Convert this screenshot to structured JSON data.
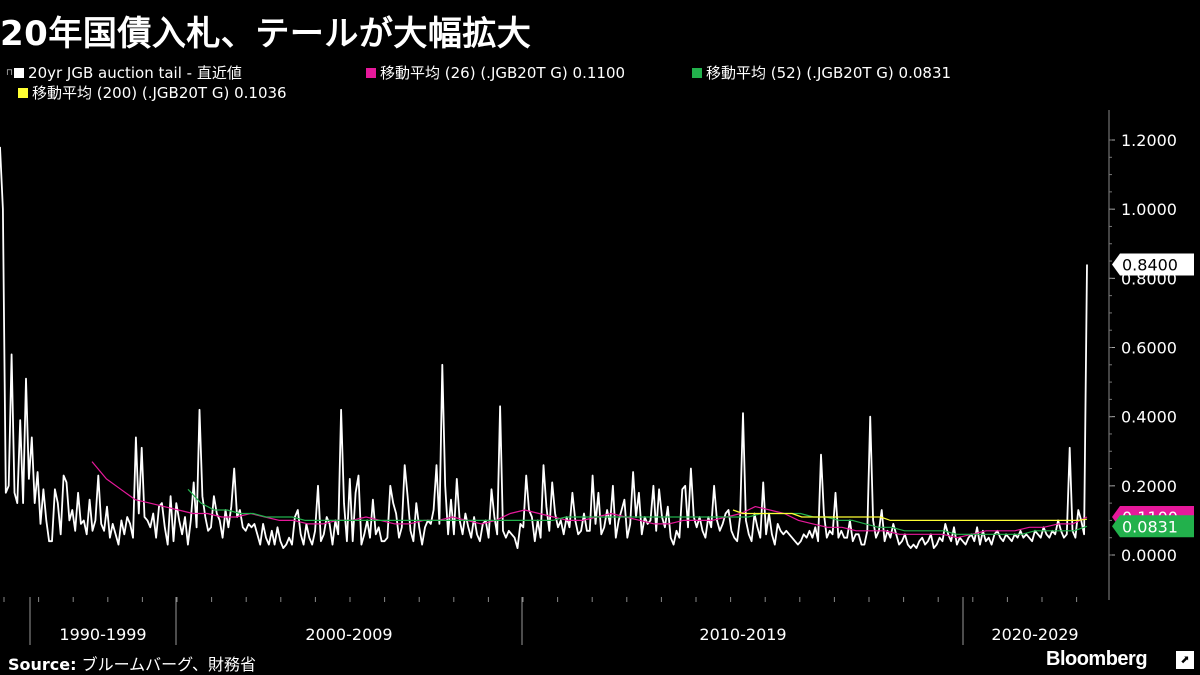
{
  "title": "20年国債入札、テールが大幅拡大",
  "source_label": "Source:",
  "source_text": "ブルームバーグ、財務省",
  "brand": "Bloomberg",
  "legend": [
    {
      "label": "20yr JGB auction tail - 直近値",
      "color": "#ffffff"
    },
    {
      "label": "移動平均 (26) (.JGB20T G) 0.1100",
      "color": "#e6199b"
    },
    {
      "label": "移動平均 (52) (.JGB20T G) 0.0831",
      "color": "#22b14c"
    },
    {
      "label": "移動平均 (200) (.JGB20T G)   0.1036",
      "color": "#ffff33"
    }
  ],
  "chart_data": {
    "type": "line",
    "y_ticks": [
      "1.2000",
      "1.0000",
      "0.8000",
      "0.6000",
      "0.4000",
      "0.2000",
      "0.0000"
    ],
    "y_tick_values": [
      1.2,
      1.0,
      0.8,
      0.6,
      0.4,
      0.2,
      0.0
    ],
    "ylim": [
      -0.1,
      1.3
    ],
    "x_labels": [
      "1990-1999",
      "2000-2009",
      "2010-2019",
      "2020-2029"
    ],
    "last_value_labels": [
      {
        "text": "0.8400",
        "value": 0.84,
        "color": "#ffffff"
      },
      {
        "text": "0.1100",
        "value": 0.11,
        "color": "#e6199b"
      },
      {
        "text": "0.0831",
        "value": 0.0831,
        "color": "#22b14c"
      }
    ],
    "series": [
      {
        "name": "20yr JGB auction tail - 直近値",
        "color": "#ffffff",
        "values": [
          1.18,
          1.0,
          0.18,
          0.2,
          0.58,
          0.18,
          0.15,
          0.39,
          0.15,
          0.51,
          0.22,
          0.34,
          0.15,
          0.24,
          0.09,
          0.19,
          0.1,
          0.04,
          0.04,
          0.19,
          0.15,
          0.06,
          0.23,
          0.21,
          0.1,
          0.13,
          0.07,
          0.18,
          0.09,
          0.1,
          0.06,
          0.16,
          0.07,
          0.1,
          0.23,
          0.09,
          0.07,
          0.14,
          0.05,
          0.09,
          0.06,
          0.03,
          0.1,
          0.06,
          0.11,
          0.09,
          0.05,
          0.34,
          0.12,
          0.31,
          0.11,
          0.1,
          0.08,
          0.12,
          0.05,
          0.14,
          0.15,
          0.08,
          0.03,
          0.17,
          0.04,
          0.15,
          0.1,
          0.06,
          0.11,
          0.03,
          0.1,
          0.21,
          0.08,
          0.42,
          0.17,
          0.11,
          0.07,
          0.08,
          0.17,
          0.12,
          0.1,
          0.05,
          0.13,
          0.08,
          0.14,
          0.25,
          0.11,
          0.13,
          0.08,
          0.07,
          0.09,
          0.08,
          0.09,
          0.06,
          0.03,
          0.09,
          0.05,
          0.03,
          0.07,
          0.03,
          0.08,
          0.04,
          0.02,
          0.03,
          0.05,
          0.03,
          0.11,
          0.13,
          0.06,
          0.03,
          0.09,
          0.05,
          0.03,
          0.07,
          0.2,
          0.04,
          0.06,
          0.11,
          0.09,
          0.03,
          0.1,
          0.06,
          0.42,
          0.15,
          0.04,
          0.22,
          0.04,
          0.18,
          0.23,
          0.03,
          0.06,
          0.1,
          0.05,
          0.16,
          0.06,
          0.08,
          0.04,
          0.04,
          0.05,
          0.2,
          0.15,
          0.12,
          0.05,
          0.08,
          0.26,
          0.17,
          0.07,
          0.04,
          0.15,
          0.08,
          0.03,
          0.08,
          0.1,
          0.09,
          0.13,
          0.26,
          0.09,
          0.55,
          0.2,
          0.06,
          0.16,
          0.06,
          0.22,
          0.1,
          0.06,
          0.12,
          0.08,
          0.05,
          0.11,
          0.06,
          0.04,
          0.09,
          0.1,
          0.05,
          0.19,
          0.11,
          0.06,
          0.43,
          0.07,
          0.05,
          0.07,
          0.06,
          0.05,
          0.02,
          0.09,
          0.08,
          0.23,
          0.13,
          0.11,
          0.04,
          0.1,
          0.05,
          0.26,
          0.14,
          0.07,
          0.21,
          0.12,
          0.08,
          0.1,
          0.06,
          0.11,
          0.08,
          0.18,
          0.1,
          0.06,
          0.07,
          0.12,
          0.07,
          0.07,
          0.23,
          0.09,
          0.18,
          0.06,
          0.08,
          0.13,
          0.09,
          0.2,
          0.05,
          0.1,
          0.13,
          0.16,
          0.05,
          0.09,
          0.24,
          0.11,
          0.18,
          0.06,
          0.11,
          0.09,
          0.1,
          0.2,
          0.07,
          0.19,
          0.11,
          0.08,
          0.14,
          0.05,
          0.03,
          0.07,
          0.05,
          0.19,
          0.2,
          0.08,
          0.25,
          0.11,
          0.08,
          0.11,
          0.07,
          0.05,
          0.11,
          0.08,
          0.2,
          0.1,
          0.07,
          0.09,
          0.12,
          0.13,
          0.07,
          0.05,
          0.04,
          0.11,
          0.41,
          0.1,
          0.06,
          0.04,
          0.12,
          0.08,
          0.05,
          0.21,
          0.06,
          0.12,
          0.06,
          0.03,
          0.09,
          0.07,
          0.06,
          0.07,
          0.06,
          0.05,
          0.04,
          0.03,
          0.04,
          0.06,
          0.05,
          0.07,
          0.05,
          0.08,
          0.04,
          0.29,
          0.12,
          0.05,
          0.07,
          0.06,
          0.18,
          0.05,
          0.07,
          0.05,
          0.05,
          0.1,
          0.04,
          0.06,
          0.06,
          0.03,
          0.03,
          0.07,
          0.4,
          0.1,
          0.05,
          0.07,
          0.13,
          0.04,
          0.07,
          0.05,
          0.09,
          0.06,
          0.03,
          0.04,
          0.06,
          0.03,
          0.02,
          0.03,
          0.02,
          0.04,
          0.05,
          0.03,
          0.04,
          0.06,
          0.02,
          0.03,
          0.05,
          0.04,
          0.09,
          0.06,
          0.04,
          0.08,
          0.03,
          0.05,
          0.04,
          0.03,
          0.05,
          0.06,
          0.04,
          0.08,
          0.03,
          0.07,
          0.04,
          0.05,
          0.03,
          0.06,
          0.07,
          0.05,
          0.04,
          0.06,
          0.05,
          0.04,
          0.06,
          0.05,
          0.07,
          0.05,
          0.06,
          0.05,
          0.04,
          0.07,
          0.06,
          0.05,
          0.08,
          0.06,
          0.05,
          0.07,
          0.06,
          0.1,
          0.07,
          0.05,
          0.06,
          0.31,
          0.07,
          0.05,
          0.13,
          0.1,
          0.06,
          0.84
        ]
      },
      {
        "name": "移動平均 (26) (.JGB20T G)",
        "color": "#e6199b",
        "values": [
          0.27,
          0.22,
          0.19,
          0.16,
          0.15,
          0.14,
          0.13,
          0.12,
          0.12,
          0.11,
          0.11,
          0.12,
          0.11,
          0.1,
          0.1,
          0.09,
          0.09,
          0.1,
          0.1,
          0.11,
          0.1,
          0.09,
          0.09,
          0.1,
          0.1,
          0.11,
          0.1,
          0.09,
          0.1,
          0.12,
          0.13,
          0.12,
          0.11,
          0.1,
          0.1,
          0.11,
          0.12,
          0.11,
          0.1,
          0.09,
          0.09,
          0.1,
          0.1,
          0.1,
          0.11,
          0.12,
          0.14,
          0.13,
          0.12,
          0.1,
          0.09,
          0.08,
          0.08,
          0.07,
          0.07,
          0.07,
          0.06,
          0.06,
          0.06,
          0.06,
          0.05,
          0.06,
          0.07,
          0.07,
          0.07,
          0.08,
          0.08,
          0.09,
          0.09,
          0.11
        ]
      },
      {
        "name": "移動平均 (52) (.JGB20T G)",
        "color": "#22b14c",
        "values": [
          0.19,
          0.15,
          0.13,
          0.13,
          0.12,
          0.12,
          0.11,
          0.11,
          0.11,
          0.1,
          0.1,
          0.1,
          0.1,
          0.1,
          0.1,
          0.1,
          0.1,
          0.1,
          0.1,
          0.1,
          0.1,
          0.1,
          0.1,
          0.1,
          0.1,
          0.1,
          0.1,
          0.1,
          0.1,
          0.11,
          0.11,
          0.11,
          0.11,
          0.11,
          0.11,
          0.11,
          0.11,
          0.11,
          0.11,
          0.11,
          0.11,
          0.11,
          0.11,
          0.11,
          0.12,
          0.12,
          0.12,
          0.12,
          0.11,
          0.11,
          0.1,
          0.1,
          0.09,
          0.08,
          0.08,
          0.07,
          0.07,
          0.07,
          0.07,
          0.06,
          0.06,
          0.06,
          0.06,
          0.06,
          0.06,
          0.07,
          0.07,
          0.07,
          0.07,
          0.0831
        ]
      },
      {
        "name": "移動平均 (200) (.JGB20T G)",
        "color": "#ffff33",
        "values": [
          0.13,
          0.12,
          0.12,
          0.12,
          0.12,
          0.12,
          0.12,
          0.11,
          0.11,
          0.11,
          0.11,
          0.11,
          0.11,
          0.11,
          0.11,
          0.11,
          0.1,
          0.1,
          0.1,
          0.1,
          0.1,
          0.1,
          0.1,
          0.1,
          0.1,
          0.1,
          0.1,
          0.1,
          0.1,
          0.1,
          0.1,
          0.1,
          0.1,
          0.1,
          0.1,
          0.1,
          0.1036
        ]
      }
    ]
  }
}
